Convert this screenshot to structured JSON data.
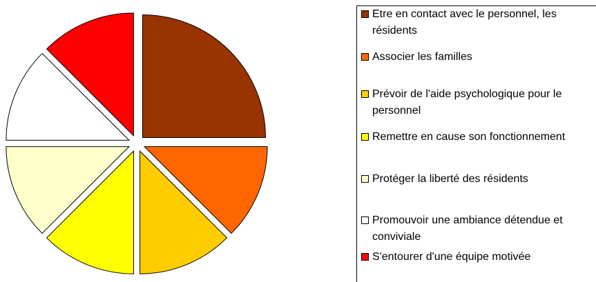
{
  "chart_data": {
    "type": "pie",
    "categories": [
      "Etre en contact avec le personnel, les résidents",
      "Associer les familles",
      "Prévoir de l'aide psychologique pour le personnel",
      "Remettre en cause son fonctionnement",
      "Protéger la liberté des résidents",
      "Promouvoir une ambiance détendue et conviviale",
      "S'entourer d'une équipe motivée"
    ],
    "values": [
      25,
      12.5,
      12.5,
      12.5,
      12.5,
      12.5,
      12.5
    ],
    "colors": [
      "#993300",
      "#ff6600",
      "#ffcc00",
      "#ffff00",
      "#ffffcc",
      "#ffffff",
      "#ff0000"
    ]
  }
}
